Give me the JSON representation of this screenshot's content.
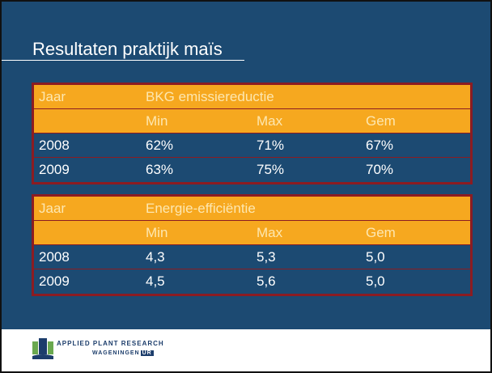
{
  "title": "Resultaten praktijk maïs",
  "tables": [
    {
      "header": [
        "Jaar",
        "BKG emissiereductie"
      ],
      "subheader": [
        "Min",
        "Max",
        "Gem"
      ],
      "rows": [
        [
          "2008",
          "62%",
          "71%",
          "67%"
        ],
        [
          "2009",
          "63%",
          "75%",
          "70%"
        ]
      ]
    },
    {
      "header": [
        "Jaar",
        "Energie-efficiëntie"
      ],
      "subheader": [
        "Min",
        "Max",
        "Gem"
      ],
      "rows": [
        [
          "2008",
          "4,3",
          "5,3",
          "5,0"
        ],
        [
          "2009",
          "4,5",
          "5,6",
          "5,0"
        ]
      ]
    }
  ],
  "footer": {
    "line1": "APPLIED PLANT RESEARCH",
    "line2": "WAGENINGEN",
    "badge": "UR"
  }
}
